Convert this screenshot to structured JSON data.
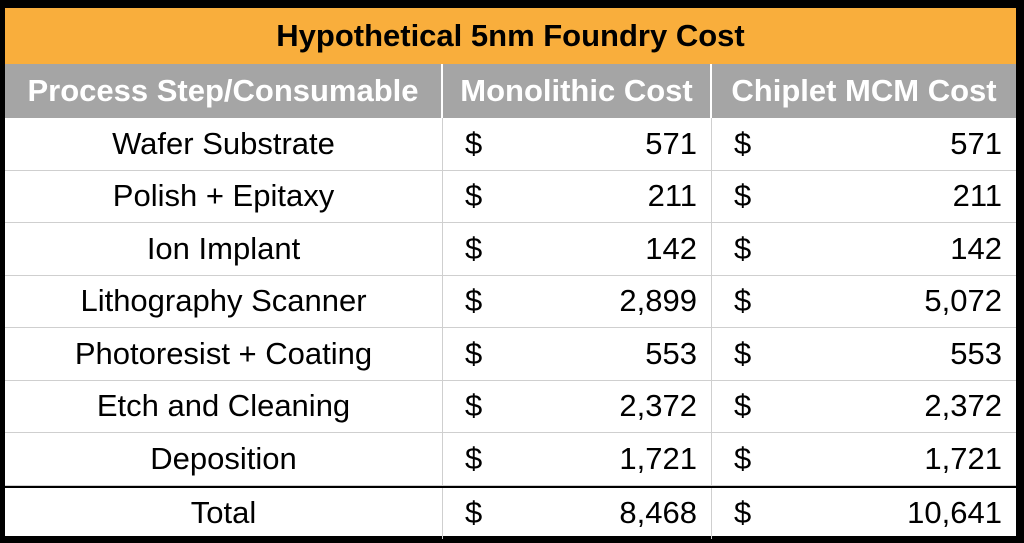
{
  "chart_data": {
    "type": "table",
    "title": "Hypothetical 5nm Foundry Cost",
    "columns": [
      "Process Step/Consumable",
      "Monolithic Cost",
      "Chiplet MCM Cost"
    ],
    "currency_symbol": "$",
    "rows": [
      {
        "label": "Wafer Substrate",
        "monolithic": "571",
        "chiplet": "571"
      },
      {
        "label": "Polish + Epitaxy",
        "monolithic": "211",
        "chiplet": "211"
      },
      {
        "label": "Ion Implant",
        "monolithic": "142",
        "chiplet": "142"
      },
      {
        "label": "Lithography Scanner",
        "monolithic": "2,899",
        "chiplet": "5,072"
      },
      {
        "label": "Photoresist + Coating",
        "monolithic": "553",
        "chiplet": "553"
      },
      {
        "label": "Etch and Cleaning",
        "monolithic": "2,372",
        "chiplet": "2,372"
      },
      {
        "label": "Deposition",
        "monolithic": "1,721",
        "chiplet": "1,721"
      }
    ],
    "total": {
      "label": "Total",
      "monolithic": "8,468",
      "chiplet": "10,641"
    }
  },
  "colors": {
    "title_background": "#f9ae3c",
    "header_background": "#a5a5a5",
    "header_text": "#ffffff",
    "frame": "#000000"
  }
}
